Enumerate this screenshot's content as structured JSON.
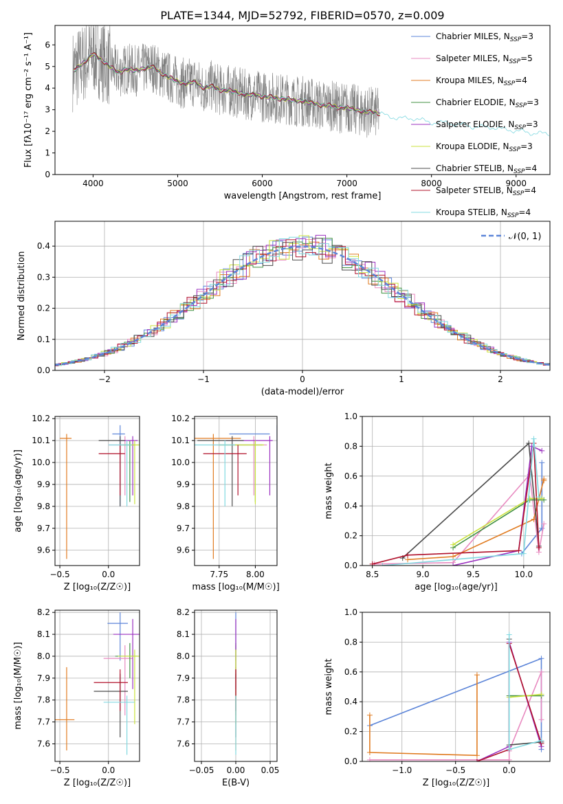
{
  "figure_title": "PLATE=1344, MJD=52792, FIBERID=0570, z=0.009",
  "colors": {
    "Chabrier MILES": "#5b84d8",
    "Salpeter MILES": "#e88ac0",
    "Kroupa MILES": "#e07b20",
    "Chabrier ELODIE": "#3f8f3f",
    "Salpeter ELODIE": "#9a2fbf",
    "Kroupa ELODIE": "#c9e23a",
    "Chabrier STELIB": "#4a4a4a",
    "Salpeter STELIB": "#b0102a",
    "Kroupa STELIB": "#7fd8e0",
    "data": "#808080",
    "grid": "#b0b0b0"
  },
  "chart_data": [
    {
      "type": "line",
      "title": "PLATE=1344, MJD=52792, FIBERID=0570, z=0.009",
      "xlabel": "wavelength [Angstrom, rest frame]",
      "ylabel": "Flux [fλ10⁻¹⁷ erg cm⁻² s⁻¹ A⁻¹]",
      "xlim": [
        3550,
        9400
      ],
      "ylim": [
        0,
        6.9
      ],
      "xticks": [
        4000,
        5000,
        6000,
        7000,
        8000,
        9000
      ],
      "yticks": [
        0,
        1,
        2,
        3,
        4,
        5,
        6
      ],
      "grid": false,
      "legend_position": "top-right",
      "legend": [
        {
          "label": "Chabrier MILES",
          "n": "3"
        },
        {
          "label": "Salpeter MILES",
          "n": "5"
        },
        {
          "label": "Kroupa MILES",
          "n": "4"
        },
        {
          "label": "Chabrier ELODIE",
          "n": "3"
        },
        {
          "label": "Salpeter ELODIE",
          "n": "3"
        },
        {
          "label": "Kroupa ELODIE",
          "n": "3"
        },
        {
          "label": "Chabrier STELIB",
          "n": "4"
        },
        {
          "label": "Salpeter STELIB",
          "n": "4"
        },
        {
          "label": "Kroupa STELIB",
          "n": "4"
        }
      ],
      "data_series": {
        "x": [
          3760,
          3800,
          3900,
          4000,
          4100,
          4200,
          4300,
          4400,
          4500,
          4600,
          4700,
          4800,
          4900,
          5000,
          5100,
          5200,
          5300,
          5400,
          5500,
          5600,
          5700,
          5800,
          5900,
          6000,
          6100,
          6200,
          6300,
          6400,
          6500,
          6600,
          6700,
          6800,
          6900,
          7000,
          7100,
          7200,
          7300,
          7400,
          7500,
          7600,
          7700,
          7800,
          7900,
          8000,
          8100,
          8200,
          8300,
          8400,
          8500,
          8600,
          8700,
          8800,
          8900,
          9000,
          9100,
          9200
        ],
        "y": [
          4.8,
          4.9,
          5.2,
          5.6,
          5.3,
          5.0,
          4.7,
          4.9,
          4.8,
          4.9,
          5.0,
          4.7,
          4.5,
          4.3,
          4.2,
          4.3,
          4.0,
          4.1,
          3.9,
          3.9,
          3.8,
          3.7,
          3.7,
          3.6,
          3.6,
          3.5,
          3.5,
          3.4,
          3.4,
          3.3,
          3.2,
          3.2,
          3.1,
          3.1,
          3.0,
          2.9,
          2.9,
          2.8,
          2.7,
          2.6,
          2.6,
          2.6,
          2.5,
          2.4,
          2.4,
          2.4,
          2.3,
          2.3,
          2.2,
          2.2,
          2.2,
          2.1,
          2.1,
          2.0,
          2.0,
          1.9
        ]
      },
      "data_range_x": [
        3760,
        7380
      ],
      "data_noise_amplitude": 1.2
    },
    {
      "type": "bar",
      "xlabel": "(data-model)/error",
      "ylabel": "Normed distribution",
      "xlim": [
        -2.5,
        2.5
      ],
      "ylim": [
        0,
        0.48
      ],
      "xticks": [
        -2,
        -1,
        0,
        1,
        2
      ],
      "yticks": [
        0.0,
        0.1,
        0.2,
        0.3,
        0.4
      ],
      "grid": true,
      "legend_position": "top-right",
      "legend": [
        {
          "label": "𝒩(0, 1)"
        }
      ],
      "bin_width": 0.1,
      "histogram_style": "step"
    },
    {
      "type": "scatter",
      "xlabel": "Z [log₁₀(Z/Z☉)]",
      "ylabel": "age  [log₁₀(age/yr)]",
      "xlim": [
        -0.55,
        0.32
      ],
      "ylim": [
        9.53,
        10.21
      ],
      "xticks": [
        -0.5,
        0.0
      ],
      "yticks": [
        9.6,
        9.7,
        9.8,
        9.9,
        10.0,
        10.1,
        10.2
      ],
      "grid": true
    },
    {
      "type": "scatter",
      "xlabel": "mass [log₁₀(M/M☉)]",
      "xlim": [
        7.58,
        8.15
      ],
      "ylim": [
        9.53,
        10.21
      ],
      "xticks": [
        7.75,
        8.0
      ],
      "yticks": [
        9.6,
        9.7,
        9.8,
        9.9,
        10.0,
        10.1,
        10.2
      ],
      "grid": true
    },
    {
      "type": "line",
      "xlabel": "age  [log₁₀(age/yr)]",
      "ylabel": "mass weight",
      "xlim": [
        8.4,
        10.26
      ],
      "ylim": [
        0,
        1.0
      ],
      "xticks": [
        8.5,
        9.0,
        9.5,
        10.0
      ],
      "yticks": [
        0.0,
        0.2,
        0.4,
        0.6,
        0.8,
        1.0
      ],
      "grid": true
    },
    {
      "type": "scatter",
      "xlabel": "Z [log₁₀(Z/Z☉)]",
      "ylabel": "mass [log₁₀(M/M☉)]",
      "xlim": [
        -0.55,
        0.32
      ],
      "ylim": [
        7.52,
        8.21
      ],
      "xticks": [
        -0.5,
        0.0
      ],
      "yticks": [
        7.6,
        7.7,
        7.8,
        7.9,
        8.0,
        8.1,
        8.2
      ],
      "grid": true
    },
    {
      "type": "scatter",
      "xlabel": "E(B-V)",
      "xlim": [
        -0.06,
        0.06
      ],
      "ylim": [
        7.52,
        8.21
      ],
      "xticks": [
        -0.05,
        0.0,
        0.05
      ],
      "yticks": [
        7.6,
        7.7,
        7.8,
        7.9,
        8.0,
        8.1,
        8.2
      ],
      "grid": true
    },
    {
      "type": "line",
      "xlabel": "Z [log₁₀(Z/Z☉)]",
      "ylabel": "mass weight",
      "xlim": [
        -1.37,
        0.38
      ],
      "ylim": [
        0,
        1.0
      ],
      "xticks": [
        -1.0,
        -0.5,
        0.0
      ],
      "yticks": [
        0.0,
        0.2,
        0.4,
        0.6,
        0.8,
        1.0
      ],
      "grid": true
    }
  ],
  "fits": [
    {
      "key": "Chabrier MILES",
      "Z": 0.05,
      "Zerr": 0.01,
      "age": 10.13,
      "ageLo": 9.8,
      "ageHi": 10.17,
      "agex0": 0.04,
      "mass": 8.15,
      "massLo": 7.98,
      "massHi": 8.2,
      "massx0": 8.02,
      "massx1": 8.1,
      "ageW": [
        [
          9.98,
          0.08
        ],
        [
          10.18,
          0.25
        ],
        [
          10.18,
          0.69
        ],
        [
          10.18,
          0.44
        ]
      ],
      "ZW": [
        [
          -1.3,
          0.24
        ],
        [
          0.3,
          0.69
        ],
        [
          0.3,
          0.44
        ],
        [
          0.3,
          0.08
        ]
      ]
    },
    {
      "key": "Salpeter MILES",
      "Z": 0.1,
      "Zerr": 0.03,
      "age": 10.08,
      "ageLo": 9.85,
      "ageHi": 10.12,
      "agex0": 0.0,
      "mass": 7.99,
      "massLo": 7.73,
      "massHi": 8.05,
      "massx0": 7.9,
      "massx1": 8.08,
      "ageW": [
        [
          8.52,
          0.01
        ],
        [
          9.3,
          0.02
        ],
        [
          10.06,
          0.61
        ],
        [
          10.15,
          0.09
        ],
        [
          10.2,
          0.28
        ]
      ],
      "ZW": [
        [
          -1.3,
          0.01
        ],
        [
          0.0,
          0.01
        ],
        [
          0.0,
          0.07
        ],
        [
          0.3,
          0.6
        ],
        [
          0.3,
          0.28
        ]
      ]
    },
    {
      "key": "Kroupa MILES",
      "Z": -0.5,
      "Zerr": 0.01,
      "age": 10.11,
      "ageLo": 9.56,
      "ageHi": 10.13,
      "agex0": -0.5,
      "mass": 7.71,
      "massLo": 7.57,
      "massHi": 7.95,
      "massx0": 7.7,
      "massx1": 7.9,
      "ageW": [
        [
          8.85,
          0.04
        ],
        [
          9.3,
          0.06
        ],
        [
          10.1,
          0.31
        ],
        [
          10.2,
          0.58
        ],
        [
          10.2,
          0.57
        ]
      ],
      "ZW": [
        [
          -1.3,
          0.31
        ],
        [
          -1.3,
          0.06
        ],
        [
          -0.3,
          0.04
        ],
        [
          -0.3,
          0.58
        ]
      ]
    },
    {
      "key": "Chabrier ELODIE",
      "Z": 0.15,
      "Zerr": 0.02,
      "age": 10.08,
      "ageLo": 9.82,
      "ageHi": 10.1,
      "agex0": 0.12,
      "mass": 8.0,
      "massLo": 7.9,
      "massHi": 8.06,
      "massx0": 7.95,
      "massx1": 8.05,
      "ageW": [
        [
          9.3,
          0.12
        ],
        [
          10.06,
          0.44
        ],
        [
          10.2,
          0.44
        ]
      ],
      "ZW": [
        [
          0.0,
          0.44
        ],
        [
          0.3,
          0.44
        ]
      ]
    },
    {
      "key": "Salpeter ELODIE",
      "Z": 0.18,
      "Zerr": 0.02,
      "age": 10.1,
      "ageLo": 9.85,
      "ageHi": 10.12,
      "agex0": 0.1,
      "mass": 8.1,
      "massLo": 7.85,
      "massHi": 8.17,
      "massx0": 8.0,
      "massx1": 8.12,
      "ageW": [
        [
          9.3,
          0.0
        ],
        [
          9.95,
          0.1
        ],
        [
          10.08,
          0.8
        ],
        [
          10.18,
          0.77
        ]
      ],
      "ZW": [
        [
          -0.3,
          0.0
        ],
        [
          0.0,
          0.1
        ],
        [
          0.0,
          0.8
        ],
        [
          0.3,
          0.1
        ]
      ]
    },
    {
      "key": "Kroupa ELODIE",
      "Z": 0.2,
      "Zerr": 0.02,
      "age": 10.08,
      "ageLo": 9.81,
      "ageHi": 10.1,
      "agex0": 0.15,
      "mass": 8.0,
      "massLo": 7.69,
      "massHi": 8.03,
      "massx0": 7.94,
      "massx1": 8.06,
      "ageW": [
        [
          9.3,
          0.14
        ],
        [
          10.06,
          0.45
        ],
        [
          10.18,
          0.45
        ]
      ],
      "ZW": [
        [
          0.0,
          0.43
        ],
        [
          0.3,
          0.45
        ]
      ]
    },
    {
      "key": "Chabrier STELIB",
      "Z": 0.05,
      "Zerr": 0.01,
      "age": 10.1,
      "ageLo": 9.8,
      "ageHi": 10.12,
      "agex0": -0.1,
      "mass": 7.84,
      "massLo": 7.63,
      "massHi": 7.92,
      "massx0": 7.8,
      "massx1": 7.92,
      "ageW": [
        [
          8.8,
          0.05
        ],
        [
          10.05,
          0.82
        ],
        [
          10.15,
          0.13
        ]
      ],
      "ZW": [
        [
          0.0,
          0.82
        ],
        [
          0.0,
          0.11
        ],
        [
          0.3,
          0.13
        ]
      ]
    },
    {
      "key": "Salpeter STELIB",
      "Z": 0.05,
      "Zerr": 0.01,
      "age": 10.04,
      "ageLo": 9.85,
      "ageHi": 10.08,
      "agex0": -0.1,
      "mass": 7.88,
      "massLo": 7.75,
      "massHi": 7.94,
      "massx0": 7.84,
      "massx1": 7.94,
      "ageW": [
        [
          8.5,
          0.01
        ],
        [
          8.85,
          0.07
        ],
        [
          9.95,
          0.1
        ],
        [
          10.1,
          0.82
        ],
        [
          10.15,
          0.12
        ]
      ],
      "ZW": [
        [
          -0.3,
          0.0
        ],
        [
          0.0,
          0.08
        ],
        [
          0.0,
          0.79
        ],
        [
          0.3,
          0.12
        ]
      ]
    },
    {
      "key": "Kroupa STELIB",
      "Z": 0.12,
      "Zerr": 0.02,
      "age": 10.08,
      "ageLo": 9.8,
      "ageHi": 10.1,
      "agex0": 0.0,
      "mass": 7.79,
      "massLo": 7.55,
      "massHi": 7.82,
      "massx0": 7.74,
      "massx1": 7.86,
      "ageW": [
        [
          8.6,
          0.0
        ],
        [
          10.0,
          0.08
        ],
        [
          10.1,
          0.85
        ],
        [
          10.15,
          0.46
        ]
      ],
      "ZW": [
        [
          0.0,
          0.85
        ],
        [
          0.0,
          0.08
        ],
        [
          0.3,
          0.14
        ]
      ]
    }
  ],
  "ebv_ticks_label": "E(B-V)"
}
